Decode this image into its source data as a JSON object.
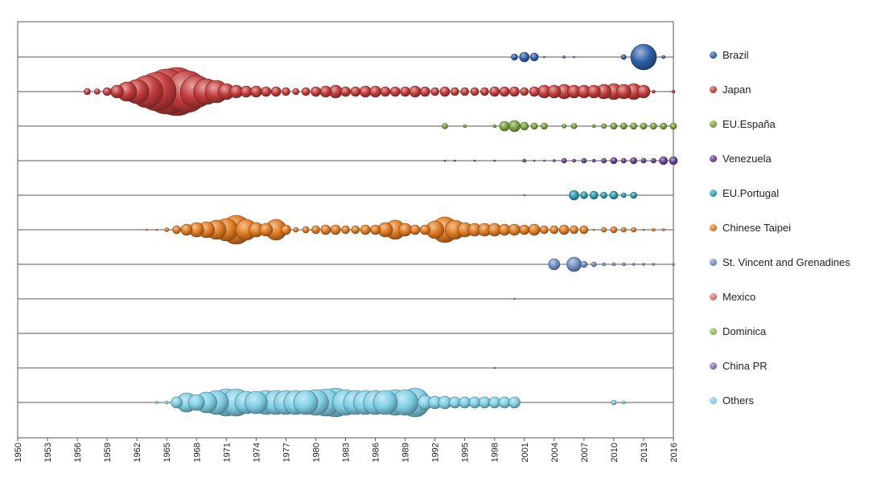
{
  "chart_data": {
    "type": "scatter",
    "variant": "bubble",
    "x_range": [
      1950,
      2016
    ],
    "x_tick_labels": [
      "1950",
      "1953",
      "1956",
      "1959",
      "1962",
      "1965",
      "1968",
      "1971",
      "1974",
      "1977",
      "1980",
      "1983",
      "1986",
      "1989",
      "1992",
      "1995",
      "1998",
      "2001",
      "2004",
      "2007",
      "2010",
      "2013",
      "2016"
    ],
    "grid": "horizontal",
    "legend_position": "right",
    "series": [
      {
        "name": "Brazil",
        "color": "#2e5fa6",
        "points": [
          [
            2000,
            4
          ],
          [
            2001,
            6
          ],
          [
            2002,
            5
          ],
          [
            2003,
            1
          ],
          [
            2005,
            1.5
          ],
          [
            2006,
            1
          ],
          [
            2011,
            3
          ],
          [
            2013,
            16
          ],
          [
            2015,
            2
          ]
        ]
      },
      {
        "name": "Japan",
        "color": "#c23b3b",
        "points": [
          [
            1957,
            4
          ],
          [
            1958,
            3.5
          ],
          [
            1959,
            5
          ],
          [
            1960,
            8
          ],
          [
            1961,
            12
          ],
          [
            1962,
            15
          ],
          [
            1963,
            20
          ],
          [
            1964,
            24
          ],
          [
            1965,
            28
          ],
          [
            1966,
            30
          ],
          [
            1967,
            26
          ],
          [
            1968,
            20
          ],
          [
            1969,
            16
          ],
          [
            1970,
            14
          ],
          [
            1971,
            10
          ],
          [
            1972,
            8
          ],
          [
            1973,
            7
          ],
          [
            1974,
            7
          ],
          [
            1975,
            6
          ],
          [
            1976,
            6
          ],
          [
            1977,
            5
          ],
          [
            1978,
            4
          ],
          [
            1979,
            5
          ],
          [
            1980,
            6
          ],
          [
            1981,
            7
          ],
          [
            1982,
            8
          ],
          [
            1983,
            6
          ],
          [
            1984,
            6
          ],
          [
            1985,
            7
          ],
          [
            1986,
            7
          ],
          [
            1987,
            6
          ],
          [
            1988,
            6
          ],
          [
            1989,
            6
          ],
          [
            1990,
            7
          ],
          [
            1991,
            6
          ],
          [
            1992,
            5
          ],
          [
            1993,
            6
          ],
          [
            1994,
            5
          ],
          [
            1995,
            5
          ],
          [
            1996,
            5
          ],
          [
            1997,
            5
          ],
          [
            1998,
            6
          ],
          [
            1999,
            6
          ],
          [
            2000,
            6
          ],
          [
            2001,
            5
          ],
          [
            2002,
            6
          ],
          [
            2003,
            8
          ],
          [
            2004,
            8
          ],
          [
            2005,
            9
          ],
          [
            2006,
            8
          ],
          [
            2007,
            8
          ],
          [
            2008,
            8
          ],
          [
            2009,
            9
          ],
          [
            2010,
            10
          ],
          [
            2011,
            9
          ],
          [
            2012,
            10
          ],
          [
            2013,
            8
          ],
          [
            2014,
            2
          ],
          [
            2016,
            2
          ]
        ]
      },
      {
        "name": "EU.España",
        "color": "#7aa53a",
        "points": [
          [
            1993,
            3.5
          ],
          [
            1995,
            2
          ],
          [
            1998,
            2
          ],
          [
            1999,
            6
          ],
          [
            2000,
            7
          ],
          [
            2001,
            5
          ],
          [
            2002,
            4
          ],
          [
            2003,
            4
          ],
          [
            2005,
            2.5
          ],
          [
            2006,
            3.5
          ],
          [
            2008,
            2
          ],
          [
            2009,
            3
          ],
          [
            2010,
            4
          ],
          [
            2011,
            4
          ],
          [
            2012,
            4
          ],
          [
            2013,
            4
          ],
          [
            2014,
            4
          ],
          [
            2015,
            4
          ],
          [
            2016,
            4
          ]
        ]
      },
      {
        "name": "Venezuela",
        "color": "#6a3f96",
        "points": [
          [
            1993,
            0.8
          ],
          [
            1994,
            0.8
          ],
          [
            1996,
            0.8
          ],
          [
            1998,
            0.8
          ],
          [
            2001,
            2
          ],
          [
            2002,
            1
          ],
          [
            2003,
            1
          ],
          [
            2004,
            1.5
          ],
          [
            2005,
            3
          ],
          [
            2006,
            2
          ],
          [
            2007,
            3
          ],
          [
            2008,
            2
          ],
          [
            2009,
            3
          ],
          [
            2010,
            4
          ],
          [
            2011,
            3
          ],
          [
            2012,
            4
          ],
          [
            2013,
            3
          ],
          [
            2014,
            3
          ],
          [
            2015,
            5
          ],
          [
            2016,
            5
          ]
        ]
      },
      {
        "name": "EU.Portugal",
        "color": "#2b9cb5",
        "points": [
          [
            2001,
            0.8
          ],
          [
            2006,
            6
          ],
          [
            2007,
            4.5
          ],
          [
            2008,
            5
          ],
          [
            2009,
            4
          ],
          [
            2010,
            5
          ],
          [
            2011,
            3
          ],
          [
            2012,
            4
          ]
        ]
      },
      {
        "name": "Chinese Taipei",
        "color": "#e07a1f",
        "points": [
          [
            1963,
            0.8
          ],
          [
            1964,
            1
          ],
          [
            1965,
            2.5
          ],
          [
            1966,
            5
          ],
          [
            1967,
            7
          ],
          [
            1968,
            9
          ],
          [
            1969,
            10
          ],
          [
            1970,
            12
          ],
          [
            1971,
            14
          ],
          [
            1972,
            18
          ],
          [
            1973,
            13
          ],
          [
            1974,
            9
          ],
          [
            1975,
            8
          ],
          [
            1976,
            13
          ],
          [
            1977,
            6
          ],
          [
            1978,
            3
          ],
          [
            1979,
            4
          ],
          [
            1980,
            5
          ],
          [
            1981,
            6
          ],
          [
            1982,
            6
          ],
          [
            1983,
            5
          ],
          [
            1984,
            5
          ],
          [
            1985,
            6
          ],
          [
            1986,
            6
          ],
          [
            1987,
            9
          ],
          [
            1988,
            12
          ],
          [
            1989,
            8
          ],
          [
            1990,
            6
          ],
          [
            1991,
            6
          ],
          [
            1992,
            11
          ],
          [
            1993,
            16
          ],
          [
            1994,
            12
          ],
          [
            1995,
            9
          ],
          [
            1996,
            8
          ],
          [
            1997,
            8
          ],
          [
            1998,
            8
          ],
          [
            1999,
            7
          ],
          [
            2000,
            7
          ],
          [
            2001,
            6
          ],
          [
            2002,
            7
          ],
          [
            2003,
            5
          ],
          [
            2004,
            5
          ],
          [
            2005,
            6
          ],
          [
            2006,
            5
          ],
          [
            2007,
            5
          ],
          [
            2008,
            1
          ],
          [
            2009,
            3
          ],
          [
            2010,
            4
          ],
          [
            2011,
            3
          ],
          [
            2012,
            3
          ],
          [
            2013,
            1
          ],
          [
            2014,
            2
          ],
          [
            2015,
            1.5
          ]
        ]
      },
      {
        "name": "St. Vincent and Grenadines",
        "color": "#6f8fc7",
        "points": [
          [
            2004,
            7
          ],
          [
            2006,
            9
          ],
          [
            2007,
            4
          ],
          [
            2008,
            3
          ],
          [
            2009,
            2
          ],
          [
            2010,
            2
          ],
          [
            2011,
            2
          ],
          [
            2012,
            1.5
          ],
          [
            2013,
            1.5
          ],
          [
            2014,
            1.5
          ],
          [
            2016,
            1.5
          ]
        ]
      },
      {
        "name": "Mexico",
        "color": "#d9736e",
        "points": [
          [
            2000,
            0.6
          ]
        ]
      },
      {
        "name": "Dominica",
        "color": "#8ebd56",
        "points": []
      },
      {
        "name": "China PR",
        "color": "#8a6db3",
        "points": [
          [
            1998,
            0.8
          ]
        ]
      },
      {
        "name": "Others",
        "color": "#7fcfe6",
        "points": [
          [
            1964,
            1.5
          ],
          [
            1965,
            2
          ],
          [
            1966,
            7
          ],
          [
            1967,
            12
          ],
          [
            1968,
            10
          ],
          [
            1969,
            13
          ],
          [
            1970,
            15
          ],
          [
            1971,
            17
          ],
          [
            1972,
            17
          ],
          [
            1973,
            14
          ],
          [
            1974,
            14
          ],
          [
            1975,
            15
          ],
          [
            1976,
            15
          ],
          [
            1977,
            15
          ],
          [
            1978,
            15
          ],
          [
            1979,
            15
          ],
          [
            1980,
            16
          ],
          [
            1981,
            17
          ],
          [
            1982,
            18
          ],
          [
            1983,
            16
          ],
          [
            1984,
            15
          ],
          [
            1985,
            15
          ],
          [
            1986,
            15
          ],
          [
            1987,
            15
          ],
          [
            1988,
            16
          ],
          [
            1989,
            16
          ],
          [
            1990,
            18
          ],
          [
            1991,
            9
          ],
          [
            1992,
            8
          ],
          [
            1993,
            8
          ],
          [
            1994,
            7
          ],
          [
            1995,
            7
          ],
          [
            1996,
            7
          ],
          [
            1997,
            7
          ],
          [
            1998,
            7
          ],
          [
            1999,
            7
          ],
          [
            2000,
            7
          ],
          [
            2010,
            3
          ],
          [
            2011,
            2
          ]
        ]
      }
    ]
  }
}
